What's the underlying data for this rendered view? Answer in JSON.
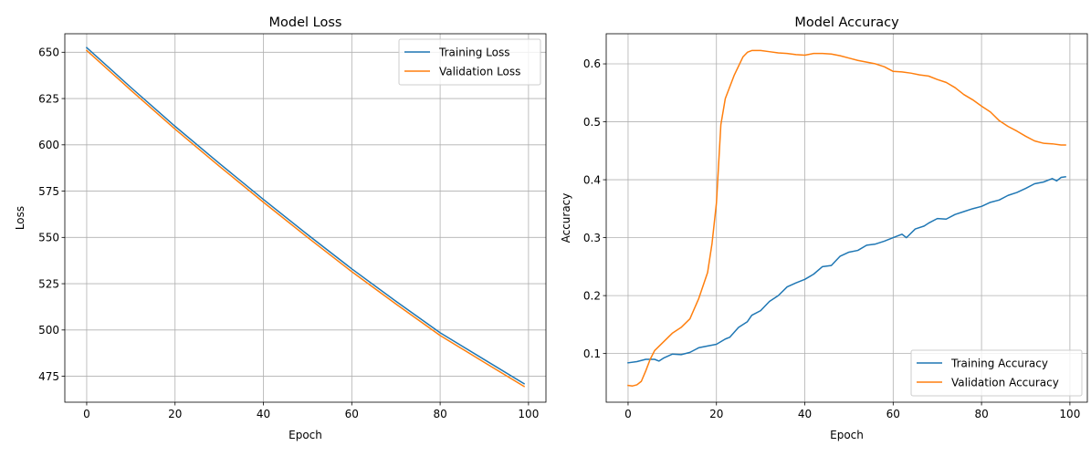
{
  "chart_data": [
    {
      "type": "line",
      "title": "Model Loss",
      "xlabel": "Epoch",
      "ylabel": "Loss",
      "xlim": [
        -4.95,
        103.95
      ],
      "ylim": [
        461,
        660
      ],
      "xticks": [
        0,
        20,
        40,
        60,
        80,
        100
      ],
      "yticks": [
        475,
        500,
        525,
        550,
        575,
        600,
        625,
        650
      ],
      "grid": true,
      "legend_position": "upper right",
      "series": [
        {
          "name": "Training Loss",
          "color": "#1f77b4",
          "x": [
            0,
            10,
            20,
            30,
            40,
            50,
            60,
            70,
            80,
            90,
            99
          ],
          "y": [
            652.5,
            631.0,
            610.0,
            590.0,
            570.5,
            551.5,
            533.0,
            515.5,
            498.5,
            484.0,
            471.0
          ]
        },
        {
          "name": "Validation Loss",
          "color": "#ff7f0e",
          "x": [
            0,
            10,
            20,
            30,
            40,
            50,
            60,
            70,
            80,
            90,
            99
          ],
          "y": [
            651.0,
            629.5,
            608.5,
            588.5,
            569.0,
            550.0,
            531.5,
            514.0,
            497.0,
            482.5,
            469.5
          ]
        }
      ]
    },
    {
      "type": "line",
      "title": "Model Accuracy",
      "xlabel": "Epoch",
      "ylabel": "Accuracy",
      "xlim": [
        -4.95,
        103.95
      ],
      "ylim": [
        0.016,
        0.652
      ],
      "xticks": [
        0,
        20,
        40,
        60,
        80,
        100
      ],
      "yticks": [
        0.1,
        0.2,
        0.3,
        0.4,
        0.5,
        0.6
      ],
      "grid": true,
      "legend_position": "lower right",
      "series": [
        {
          "name": "Training Accuracy",
          "color": "#1f77b4",
          "x": [
            0,
            2,
            4,
            6,
            7,
            8,
            10,
            12,
            14,
            16,
            18,
            20,
            22,
            23,
            25,
            27,
            28,
            30,
            32,
            34,
            36,
            38,
            40,
            42,
            44,
            46,
            48,
            50,
            52,
            54,
            56,
            58,
            60,
            62,
            63,
            65,
            67,
            68,
            70,
            72,
            74,
            76,
            78,
            80,
            82,
            84,
            86,
            88,
            90,
            92,
            94,
            96,
            97,
            98,
            99
          ],
          "y": [
            0.084,
            0.086,
            0.09,
            0.09,
            0.087,
            0.092,
            0.099,
            0.098,
            0.102,
            0.11,
            0.113,
            0.116,
            0.125,
            0.128,
            0.145,
            0.155,
            0.166,
            0.174,
            0.19,
            0.2,
            0.215,
            0.222,
            0.228,
            0.237,
            0.25,
            0.252,
            0.268,
            0.275,
            0.278,
            0.287,
            0.289,
            0.294,
            0.3,
            0.306,
            0.3,
            0.315,
            0.32,
            0.325,
            0.333,
            0.332,
            0.34,
            0.345,
            0.35,
            0.354,
            0.361,
            0.365,
            0.373,
            0.378,
            0.385,
            0.393,
            0.396,
            0.402,
            0.398,
            0.404,
            0.405
          ]
        },
        {
          "name": "Validation Accuracy",
          "color": "#ff7f0e",
          "x": [
            0,
            1,
            2,
            3,
            4,
            5,
            6,
            8,
            10,
            12,
            14,
            16,
            18,
            19,
            20,
            21,
            22,
            24,
            26,
            27,
            28,
            30,
            32,
            34,
            36,
            38,
            40,
            42,
            44,
            46,
            48,
            50,
            52,
            54,
            56,
            58,
            60,
            62,
            64,
            66,
            68,
            70,
            72,
            74,
            76,
            78,
            80,
            82,
            84,
            86,
            88,
            90,
            92,
            94,
            96,
            98,
            99
          ],
          "y": [
            0.045,
            0.044,
            0.046,
            0.052,
            0.07,
            0.09,
            0.105,
            0.12,
            0.135,
            0.145,
            0.16,
            0.195,
            0.24,
            0.29,
            0.36,
            0.495,
            0.54,
            0.58,
            0.612,
            0.62,
            0.623,
            0.623,
            0.621,
            0.619,
            0.618,
            0.616,
            0.615,
            0.618,
            0.618,
            0.617,
            0.614,
            0.61,
            0.606,
            0.603,
            0.6,
            0.595,
            0.587,
            0.586,
            0.584,
            0.581,
            0.579,
            0.573,
            0.568,
            0.559,
            0.547,
            0.538,
            0.527,
            0.517,
            0.502,
            0.492,
            0.484,
            0.475,
            0.467,
            0.463,
            0.462,
            0.46,
            0.46
          ]
        }
      ]
    }
  ]
}
